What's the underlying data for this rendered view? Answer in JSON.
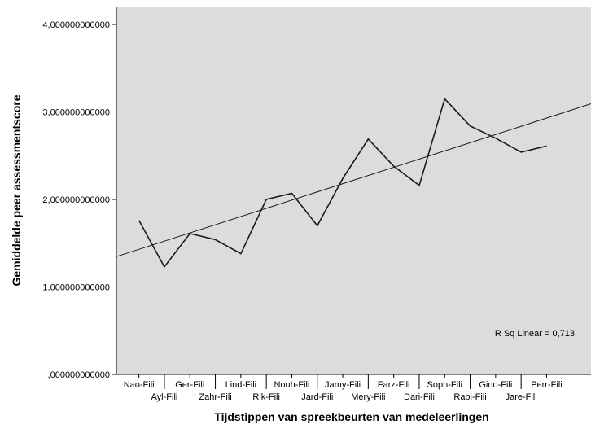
{
  "chart_data": {
    "type": "line",
    "xlabel": "Tijdstippen van spreekbeurten van medeleerlingen",
    "ylabel": "Gemiddelde peer assessmentscore",
    "ylim": [
      0,
      4
    ],
    "yticks": [
      {
        "value": 0,
        "label": ",000000000000"
      },
      {
        "value": 1,
        "label": "1,000000000000"
      },
      {
        "value": 2,
        "label": "2,000000000000"
      },
      {
        "value": 3,
        "label": "3,000000000000"
      },
      {
        "value": 4,
        "label": "4,000000000000"
      }
    ],
    "categories": [
      "Nao-Fili",
      "Ayl-Fili",
      "Ger-Fili",
      "Zahr-Fili",
      "Lind-Fili",
      "Rik-Fili",
      "Nouh-Fili",
      "Jard-Fili",
      "Jamy-Fili",
      "Mery-Fili",
      "Farz-Fili",
      "Dari-Fili",
      "Soph-Fili",
      "Rabi-Fili",
      "Gino-Fili",
      "Jare-Fili",
      "Perr-Fili"
    ],
    "series": [
      {
        "values": [
          1.76,
          1.23,
          1.61,
          1.54,
          1.38,
          2.0,
          2.07,
          1.7,
          2.24,
          2.69,
          2.38,
          2.16,
          3.15,
          2.84,
          2.7,
          2.54,
          2.61
        ]
      }
    ],
    "fit_line": {
      "type": "linear",
      "label": "R Sq Linear = 0,713",
      "y_at_first": 1.43,
      "y_at_last": 2.93
    },
    "grid": false,
    "colors": {
      "plot_background": "#dcdcdc",
      "line": "#1a1a1a",
      "fit_line": "#1a1a1a"
    }
  }
}
